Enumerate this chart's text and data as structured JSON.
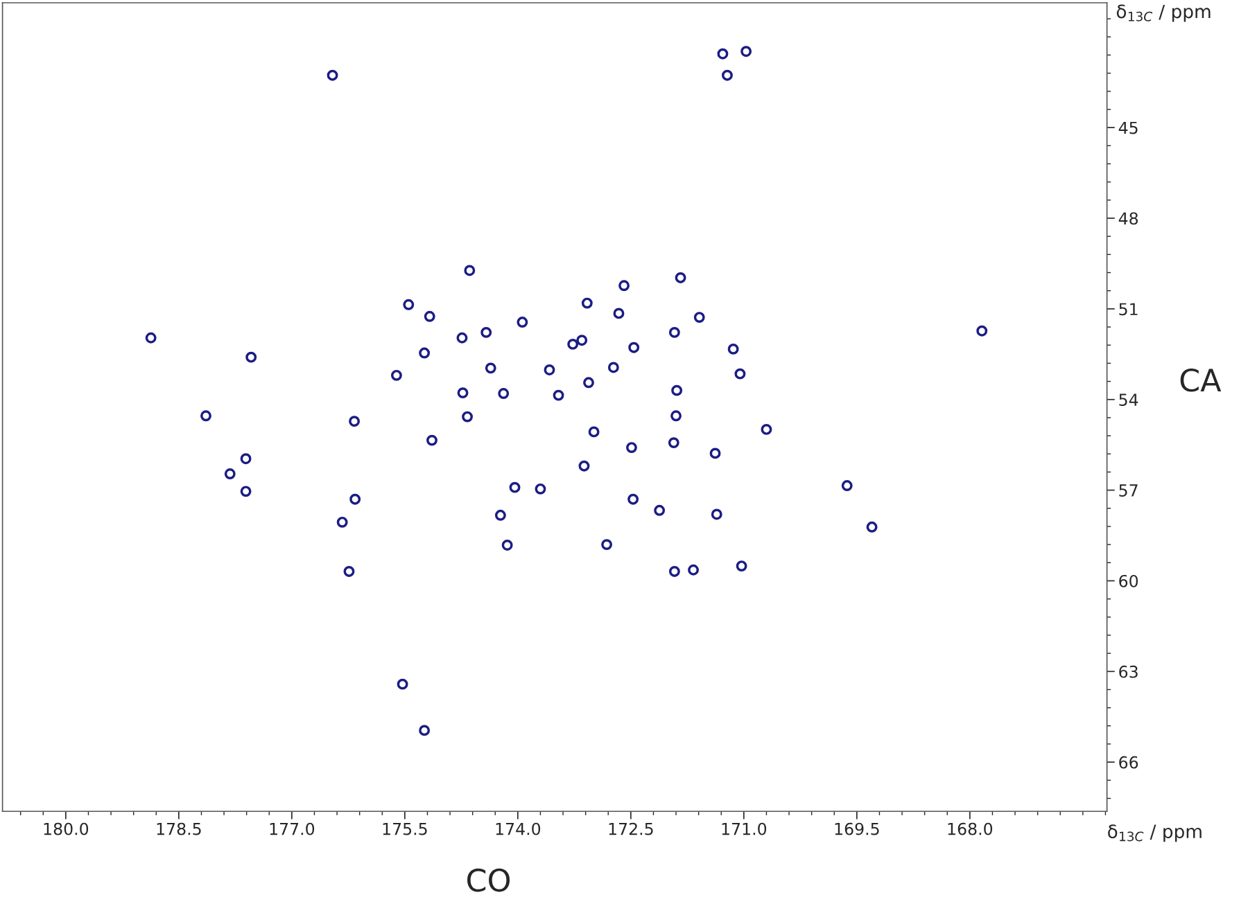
{
  "chart_data": {
    "type": "scatter",
    "xlabel": "CO",
    "ylabel": "CA",
    "annotations": [
      "δ$_{13C}$ / ppm",
      "δ$_{13C}$ / ppm"
    ],
    "marker": "circle",
    "grid": false,
    "legend": false,
    "xlim": [
      180.84,
      166.18
    ],
    "ylim": [
      67.63,
      40.87
    ],
    "xticks": [
      {
        "value": 180,
        "label": "180.0"
      },
      178.5,
      {
        "value": 177,
        "label": "177.0"
      },
      175.5,
      {
        "value": 174,
        "label": "174.0"
      },
      172.5,
      {
        "value": 171,
        "label": "171.0"
      },
      169.5,
      {
        "value": 168,
        "label": "168.0"
      }
    ],
    "yticks": [
      45,
      48,
      51,
      54,
      57,
      60,
      63,
      66
    ],
    "series": [
      {
        "color": "#1c1c84",
        "x": [
          176.46,
          171.28,
          170.97,
          171.22,
          174.64,
          172.59,
          171.84,
          175.45,
          175.17,
          173.08,
          172.66,
          171.59,
          173.94,
          167.84,
          178.87,
          174.42,
          174.74,
          171.92,
          173.27,
          173.15,
          172.46,
          171.14,
          177.54,
          175.24,
          174.36,
          172.73,
          173.58,
          171.05,
          175.61,
          173.06,
          174.73,
          174.19,
          173.46,
          171.89,
          178.14,
          176.17,
          174.67,
          171.9,
          170.7,
          172.99,
          175.14,
          171.93,
          172.49,
          171.38,
          177.61,
          173.12,
          177.82,
          177.61,
          174.04,
          173.7,
          169.63,
          176.16,
          172.47,
          172.12,
          174.23,
          171.36,
          176.33,
          169.3,
          174.14,
          172.82,
          176.24,
          171.92,
          171.67,
          171.03,
          175.53,
          175.24
        ],
        "values": [
          43.27,
          42.56,
          42.48,
          43.27,
          49.73,
          50.23,
          49.97,
          50.86,
          51.25,
          50.81,
          51.15,
          51.28,
          51.44,
          51.73,
          51.96,
          51.78,
          51.96,
          51.78,
          52.17,
          52.04,
          52.28,
          52.33,
          52.6,
          52.46,
          52.96,
          52.94,
          53.02,
          53.15,
          53.2,
          53.44,
          53.78,
          53.8,
          53.86,
          53.7,
          54.54,
          54.72,
          54.57,
          54.54,
          54.99,
          55.07,
          55.35,
          55.43,
          55.59,
          55.78,
          55.96,
          56.2,
          56.46,
          57.04,
          56.91,
          56.96,
          56.85,
          57.3,
          57.3,
          57.67,
          57.83,
          57.8,
          58.06,
          58.22,
          58.82,
          58.8,
          59.69,
          59.69,
          59.64,
          59.51,
          63.42,
          64.95
        ]
      }
    ]
  }
}
